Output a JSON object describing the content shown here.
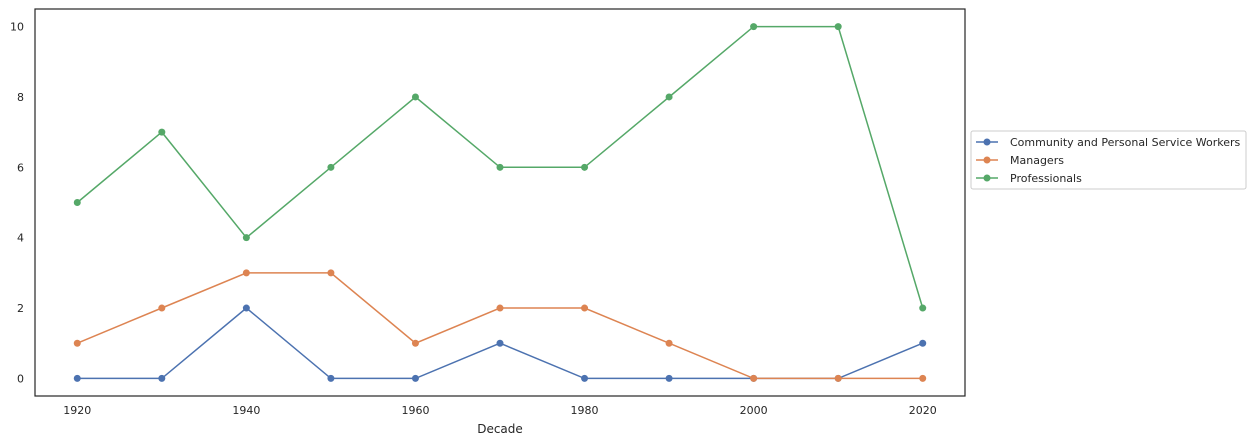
{
  "chart_data": {
    "type": "line",
    "title": "",
    "xlabel": "Decade",
    "ylabel": "",
    "x": [
      1920,
      1930,
      1940,
      1950,
      1960,
      1970,
      1980,
      1990,
      2000,
      2010,
      2020
    ],
    "xticks": [
      1920,
      1940,
      1960,
      1980,
      2000,
      2020
    ],
    "yticks": [
      0,
      2,
      4,
      6,
      8,
      10
    ],
    "xlim": [
      1915,
      2025
    ],
    "ylim": [
      -0.5,
      10.5
    ],
    "grid": false,
    "legend_position": "outside right",
    "series": [
      {
        "name": "Community and Personal Service Workers",
        "color": "#4c72b0",
        "values": [
          0,
          0,
          2,
          0,
          0,
          1,
          0,
          0,
          0,
          0,
          1
        ]
      },
      {
        "name": "Managers",
        "color": "#dd8452",
        "values": [
          1,
          2,
          3,
          3,
          1,
          2,
          2,
          1,
          0,
          0,
          0
        ]
      },
      {
        "name": "Professionals",
        "color": "#55a868",
        "values": [
          5,
          7,
          4,
          6,
          8,
          6,
          6,
          8,
          10,
          10,
          2
        ]
      }
    ]
  }
}
